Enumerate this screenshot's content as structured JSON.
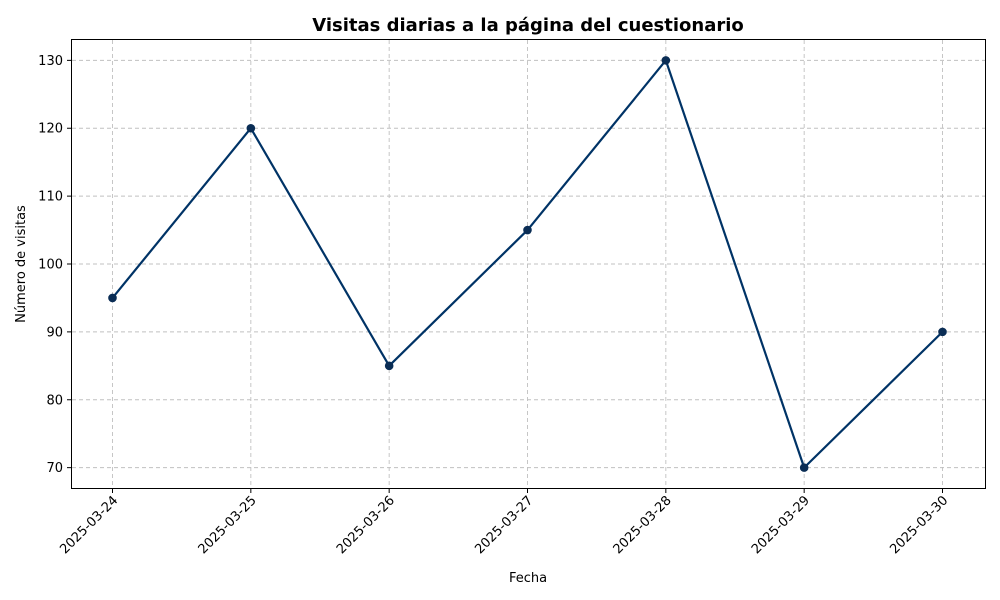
{
  "chart_data": {
    "type": "line",
    "title": "Visitas diarias a la página del cuestionario",
    "xlabel": "Fecha",
    "ylabel": "Número de visitas",
    "categories": [
      "2025-03-24",
      "2025-03-25",
      "2025-03-26",
      "2025-03-27",
      "2025-03-28",
      "2025-03-29",
      "2025-03-30"
    ],
    "series": [
      {
        "values": [
          95,
          120,
          85,
          105,
          130,
          70,
          90
        ]
      }
    ],
    "ylim": [
      67,
      133
    ],
    "yticks": [
      70,
      80,
      90,
      100,
      110,
      120,
      130
    ],
    "grid": true,
    "markers": true,
    "colors": {
      "line": "#003366",
      "marker": "#0a2d55",
      "grid": "#c0c0c0"
    }
  }
}
